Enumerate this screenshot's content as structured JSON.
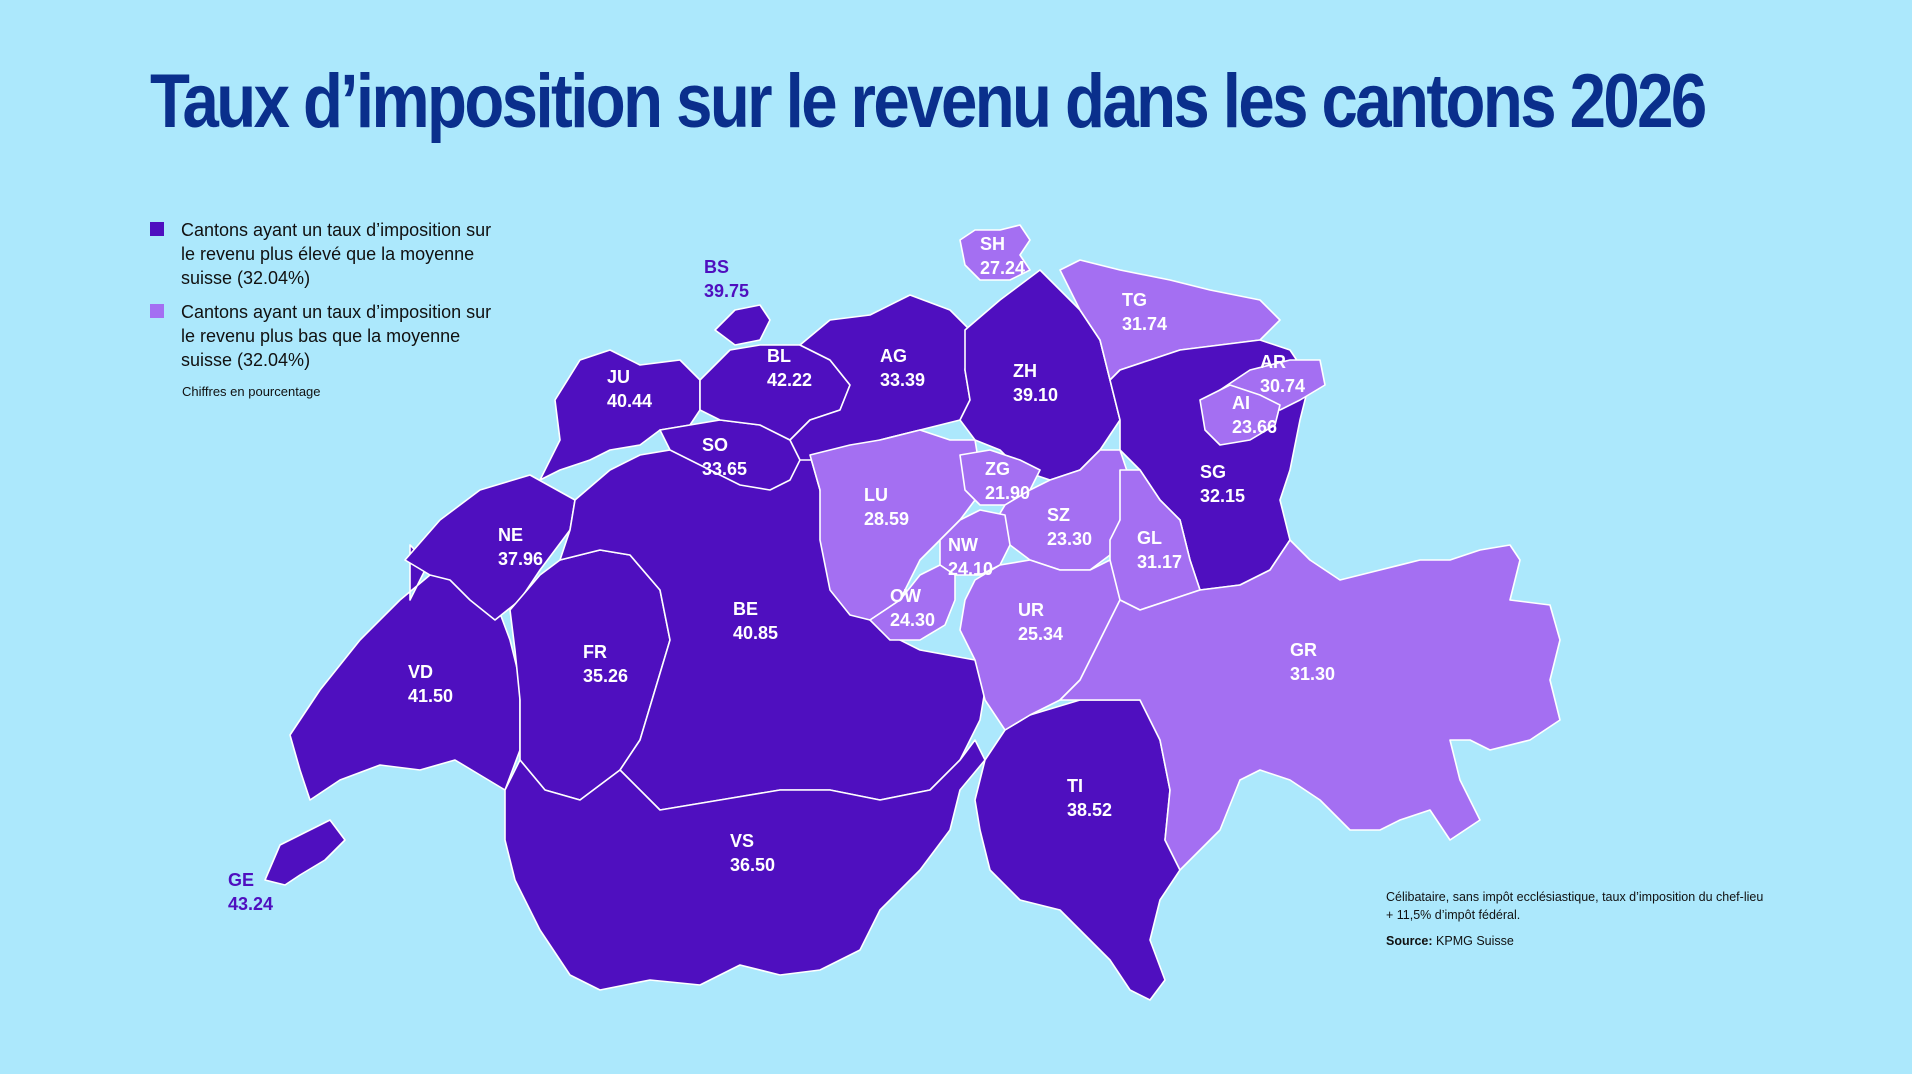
{
  "title": "Taux d’imposition sur le revenu dans les cantons 2026",
  "colors": {
    "background": "#ace8fc",
    "above_average": "#4f0fbf",
    "below_average": "#a46ff2",
    "title": "#0a2f8c",
    "border": "#ffffff"
  },
  "legend": {
    "above": "Cantons ayant un taux d’imposition sur le revenu plus élevé que la moyenne suisse (32.04%)",
    "below": "Cantons ayant un taux d’imposition sur le revenu plus bas que la moyenne suisse (32.04%)",
    "note": "Chiffres en pourcentage"
  },
  "swiss_average": 32.04,
  "cantons": [
    {
      "code": "BS",
      "rate": "39.75",
      "category": "above"
    },
    {
      "code": "BL",
      "rate": "42.22",
      "category": "above"
    },
    {
      "code": "JU",
      "rate": "40.44",
      "category": "above"
    },
    {
      "code": "AG",
      "rate": "33.39",
      "category": "above"
    },
    {
      "code": "ZH",
      "rate": "39.10",
      "category": "above"
    },
    {
      "code": "SH",
      "rate": "27.24",
      "category": "below"
    },
    {
      "code": "TG",
      "rate": "31.74",
      "category": "below"
    },
    {
      "code": "AR",
      "rate": "30.74",
      "category": "below"
    },
    {
      "code": "AI",
      "rate": "23.66",
      "category": "below"
    },
    {
      "code": "SO",
      "rate": "33.65",
      "category": "above"
    },
    {
      "code": "ZG",
      "rate": "21.90",
      "category": "below"
    },
    {
      "code": "LU",
      "rate": "28.59",
      "category": "below"
    },
    {
      "code": "SG",
      "rate": "32.15",
      "category": "above"
    },
    {
      "code": "SZ",
      "rate": "23.30",
      "category": "below"
    },
    {
      "code": "NE",
      "rate": "37.96",
      "category": "above"
    },
    {
      "code": "NW",
      "rate": "24.10",
      "category": "below"
    },
    {
      "code": "GL",
      "rate": "31.17",
      "category": "below"
    },
    {
      "code": "OW",
      "rate": "24.30",
      "category": "below"
    },
    {
      "code": "BE",
      "rate": "40.85",
      "category": "above"
    },
    {
      "code": "UR",
      "rate": "25.34",
      "category": "below"
    },
    {
      "code": "GR",
      "rate": "31.30",
      "category": "below"
    },
    {
      "code": "FR",
      "rate": "35.26",
      "category": "above"
    },
    {
      "code": "VD",
      "rate": "41.50",
      "category": "above"
    },
    {
      "code": "TI",
      "rate": "38.52",
      "category": "above"
    },
    {
      "code": "VS",
      "rate": "36.50",
      "category": "above"
    },
    {
      "code": "GE",
      "rate": "43.24",
      "category": "above"
    }
  ],
  "footnote": "Célibataire, sans impôt ecclésiastique, taux d’imposition du chef-lieu + 11,5% d’impôt fédéral.",
  "source": {
    "label": "Source:",
    "value": "KPMG Suisse"
  }
}
